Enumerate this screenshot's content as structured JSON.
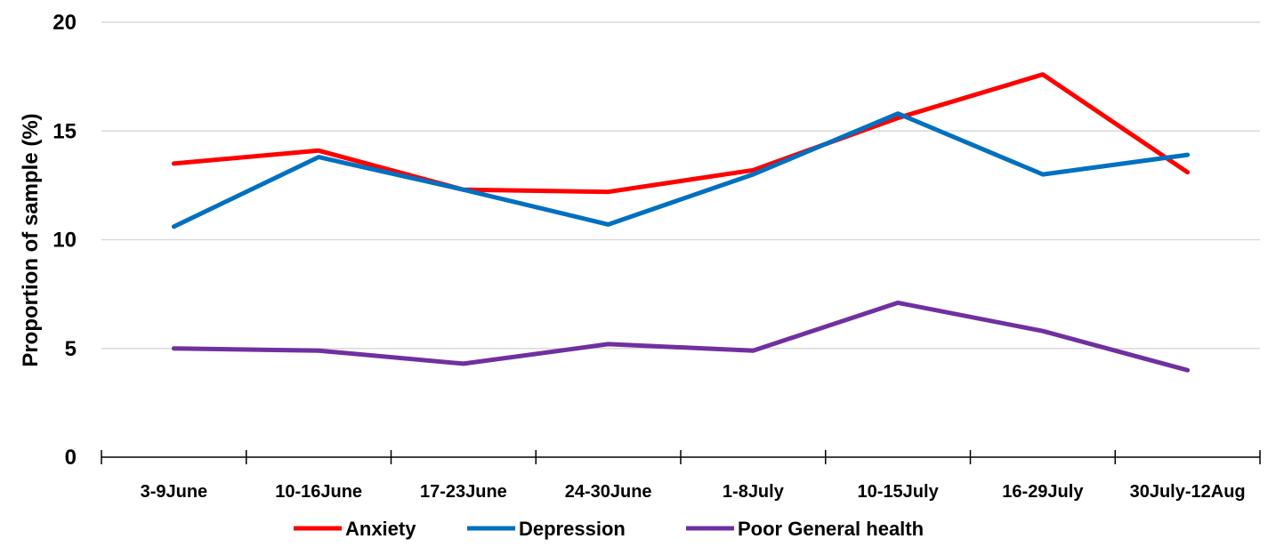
{
  "chart_data": {
    "type": "line",
    "title": "",
    "xlabel": "",
    "ylabel": "Proportion of sample (%)",
    "ylim": [
      0,
      20
    ],
    "yticks": [
      0,
      5,
      10,
      15,
      20
    ],
    "grid": true,
    "legend_position": "bottom",
    "categories": [
      "3-9June",
      "10-16June",
      "17-23June",
      "24-30June",
      "1-8July",
      "10-15July",
      "16-29July",
      "30July-12Aug"
    ],
    "series": [
      {
        "name": "Anxiety",
        "color": "#FF0000",
        "values": [
          13.5,
          14.1,
          12.3,
          12.2,
          13.2,
          15.6,
          17.6,
          13.1
        ]
      },
      {
        "name": "Depression",
        "color": "#0070C0",
        "values": [
          10.6,
          13.8,
          12.3,
          10.7,
          13.0,
          15.8,
          13.0,
          13.9
        ]
      },
      {
        "name": "Poor General health",
        "color": "#7030A0",
        "values": [
          5.0,
          4.9,
          4.3,
          5.2,
          4.9,
          7.1,
          5.8,
          4.0
        ]
      }
    ]
  }
}
